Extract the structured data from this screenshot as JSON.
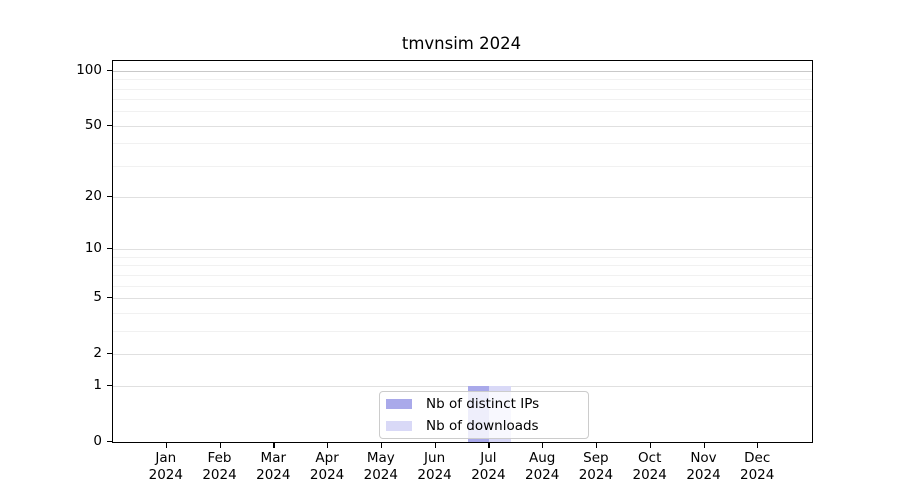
{
  "chart_data": {
    "type": "bar",
    "title": "tmvnsim 2024",
    "categories": [
      "Jan 2024",
      "Feb 2024",
      "Mar 2024",
      "Apr 2024",
      "May 2024",
      "Jun 2024",
      "Jul 2024",
      "Aug 2024",
      "Sep 2024",
      "Oct 2024",
      "Nov 2024",
      "Dec 2024"
    ],
    "series": [
      {
        "name": "Nb of distinct IPs",
        "color": "#a9a9ea",
        "values": [
          0,
          0,
          0,
          0,
          0,
          0,
          1,
          0,
          0,
          0,
          0,
          0
        ]
      },
      {
        "name": "Nb of downloads",
        "color": "#d9d9f7",
        "values": [
          0,
          0,
          0,
          0,
          0,
          0,
          1,
          0,
          0,
          0,
          0,
          0
        ]
      }
    ],
    "xlabel": "",
    "ylabel": "",
    "yscale": "log1p",
    "ylim": [
      0,
      113
    ],
    "y_major_ticks": [
      0,
      1,
      2,
      5,
      10,
      20,
      50,
      100
    ],
    "y_minor_gridlines": [
      3,
      4,
      6,
      7,
      8,
      9,
      30,
      40,
      60,
      70,
      80,
      90
    ],
    "grid": "horizontal",
    "legend_position": "lower center",
    "colors": {
      "axis": "#000000",
      "major_grid": "#e0e0e0",
      "minor_grid": "#f1f1f1",
      "background": "#ffffff"
    }
  }
}
